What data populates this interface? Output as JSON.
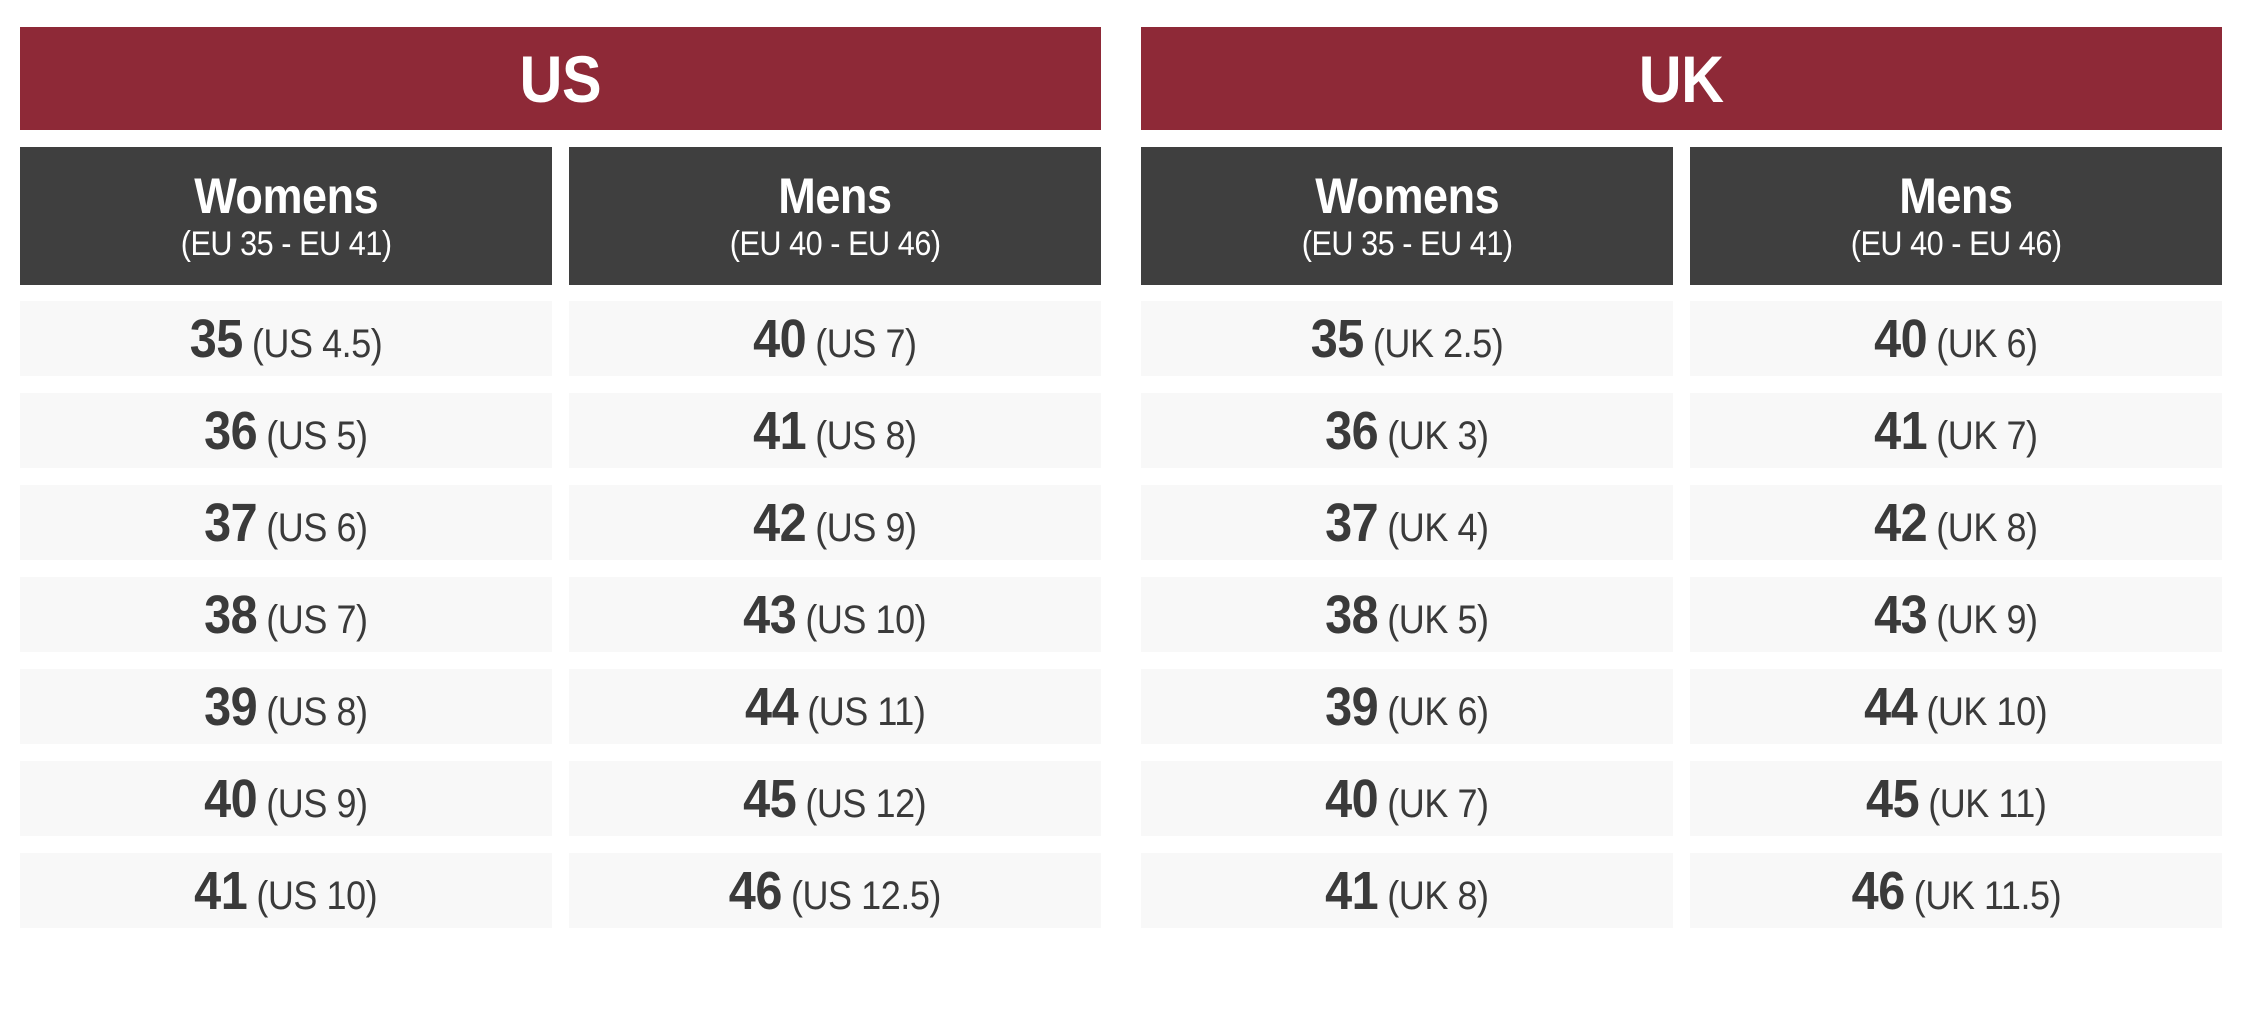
{
  "colors": {
    "title_bg": "#8e2937",
    "header_bg": "#3f3f3f",
    "header_text": "#ffffff",
    "row_bg": "#f8f8f8",
    "row_text": "#3a3a3a",
    "page_bg": "#ffffff"
  },
  "tables": [
    {
      "title": "US",
      "columns": [
        {
          "label": "Womens",
          "range": "(EU 35 - EU 41)"
        },
        {
          "label": "Mens",
          "range": "(EU 40 - EU 46)"
        }
      ],
      "rows": [
        {
          "womens_eu": "35",
          "womens_local": "(US 4.5)",
          "mens_eu": "40",
          "mens_local": "(US 7)"
        },
        {
          "womens_eu": "36",
          "womens_local": "(US 5)",
          "mens_eu": "41",
          "mens_local": "(US 8)"
        },
        {
          "womens_eu": "37",
          "womens_local": "(US 6)",
          "mens_eu": "42",
          "mens_local": "(US 9)"
        },
        {
          "womens_eu": "38",
          "womens_local": "(US 7)",
          "mens_eu": "43",
          "mens_local": "(US 10)"
        },
        {
          "womens_eu": "39",
          "womens_local": "(US 8)",
          "mens_eu": "44",
          "mens_local": "(US 11)"
        },
        {
          "womens_eu": "40",
          "womens_local": "(US 9)",
          "mens_eu": "45",
          "mens_local": "(US 12)"
        },
        {
          "womens_eu": "41",
          "womens_local": "(US 10)",
          "mens_eu": "46",
          "mens_local": "(US 12.5)"
        }
      ]
    },
    {
      "title": "UK",
      "columns": [
        {
          "label": "Womens",
          "range": "(EU 35 - EU 41)"
        },
        {
          "label": "Mens",
          "range": "(EU 40 - EU 46)"
        }
      ],
      "rows": [
        {
          "womens_eu": "35",
          "womens_local": "(UK 2.5)",
          "mens_eu": "40",
          "mens_local": "(UK 6)"
        },
        {
          "womens_eu": "36",
          "womens_local": "(UK 3)",
          "mens_eu": "41",
          "mens_local": "(UK 7)"
        },
        {
          "womens_eu": "37",
          "womens_local": "(UK 4)",
          "mens_eu": "42",
          "mens_local": "(UK 8)"
        },
        {
          "womens_eu": "38",
          "womens_local": "(UK 5)",
          "mens_eu": "43",
          "mens_local": "(UK 9)"
        },
        {
          "womens_eu": "39",
          "womens_local": "(UK 6)",
          "mens_eu": "44",
          "mens_local": "(UK 10)"
        },
        {
          "womens_eu": "40",
          "womens_local": "(UK 7)",
          "mens_eu": "45",
          "mens_local": "(UK 11)"
        },
        {
          "womens_eu": "41",
          "womens_local": "(UK 8)",
          "mens_eu": "46",
          "mens_local": "(UK 11.5)"
        }
      ]
    }
  ],
  "chart_data": [
    {
      "type": "table",
      "title": "US",
      "columns": [
        "Womens (EU 35 - EU 41)",
        "Mens (EU 40 - EU 46)"
      ],
      "rows": [
        [
          "35 (US 4.5)",
          "40 (US 7)"
        ],
        [
          "36 (US 5)",
          "41 (US 8)"
        ],
        [
          "37 (US 6)",
          "42 (US 9)"
        ],
        [
          "38 (US 7)",
          "43 (US 10)"
        ],
        [
          "39 (US 8)",
          "44 (US 11)"
        ],
        [
          "40 (US 9)",
          "45 (US 12)"
        ],
        [
          "41 (US 10)",
          "46 (US 12.5)"
        ]
      ]
    },
    {
      "type": "table",
      "title": "UK",
      "columns": [
        "Womens (EU 35 - EU 41)",
        "Mens (EU 40 - EU 46)"
      ],
      "rows": [
        [
          "35 (UK 2.5)",
          "40 (UK 6)"
        ],
        [
          "36 (UK 3)",
          "41 (UK 7)"
        ],
        [
          "37 (UK 4)",
          "42 (UK 8)"
        ],
        [
          "38 (UK 5)",
          "43 (UK 9)"
        ],
        [
          "39 (UK 6)",
          "44 (UK 10)"
        ],
        [
          "40 (UK 7)",
          "45 (UK 11)"
        ],
        [
          "41 (UK 8)",
          "46 (UK 11.5)"
        ]
      ]
    }
  ]
}
